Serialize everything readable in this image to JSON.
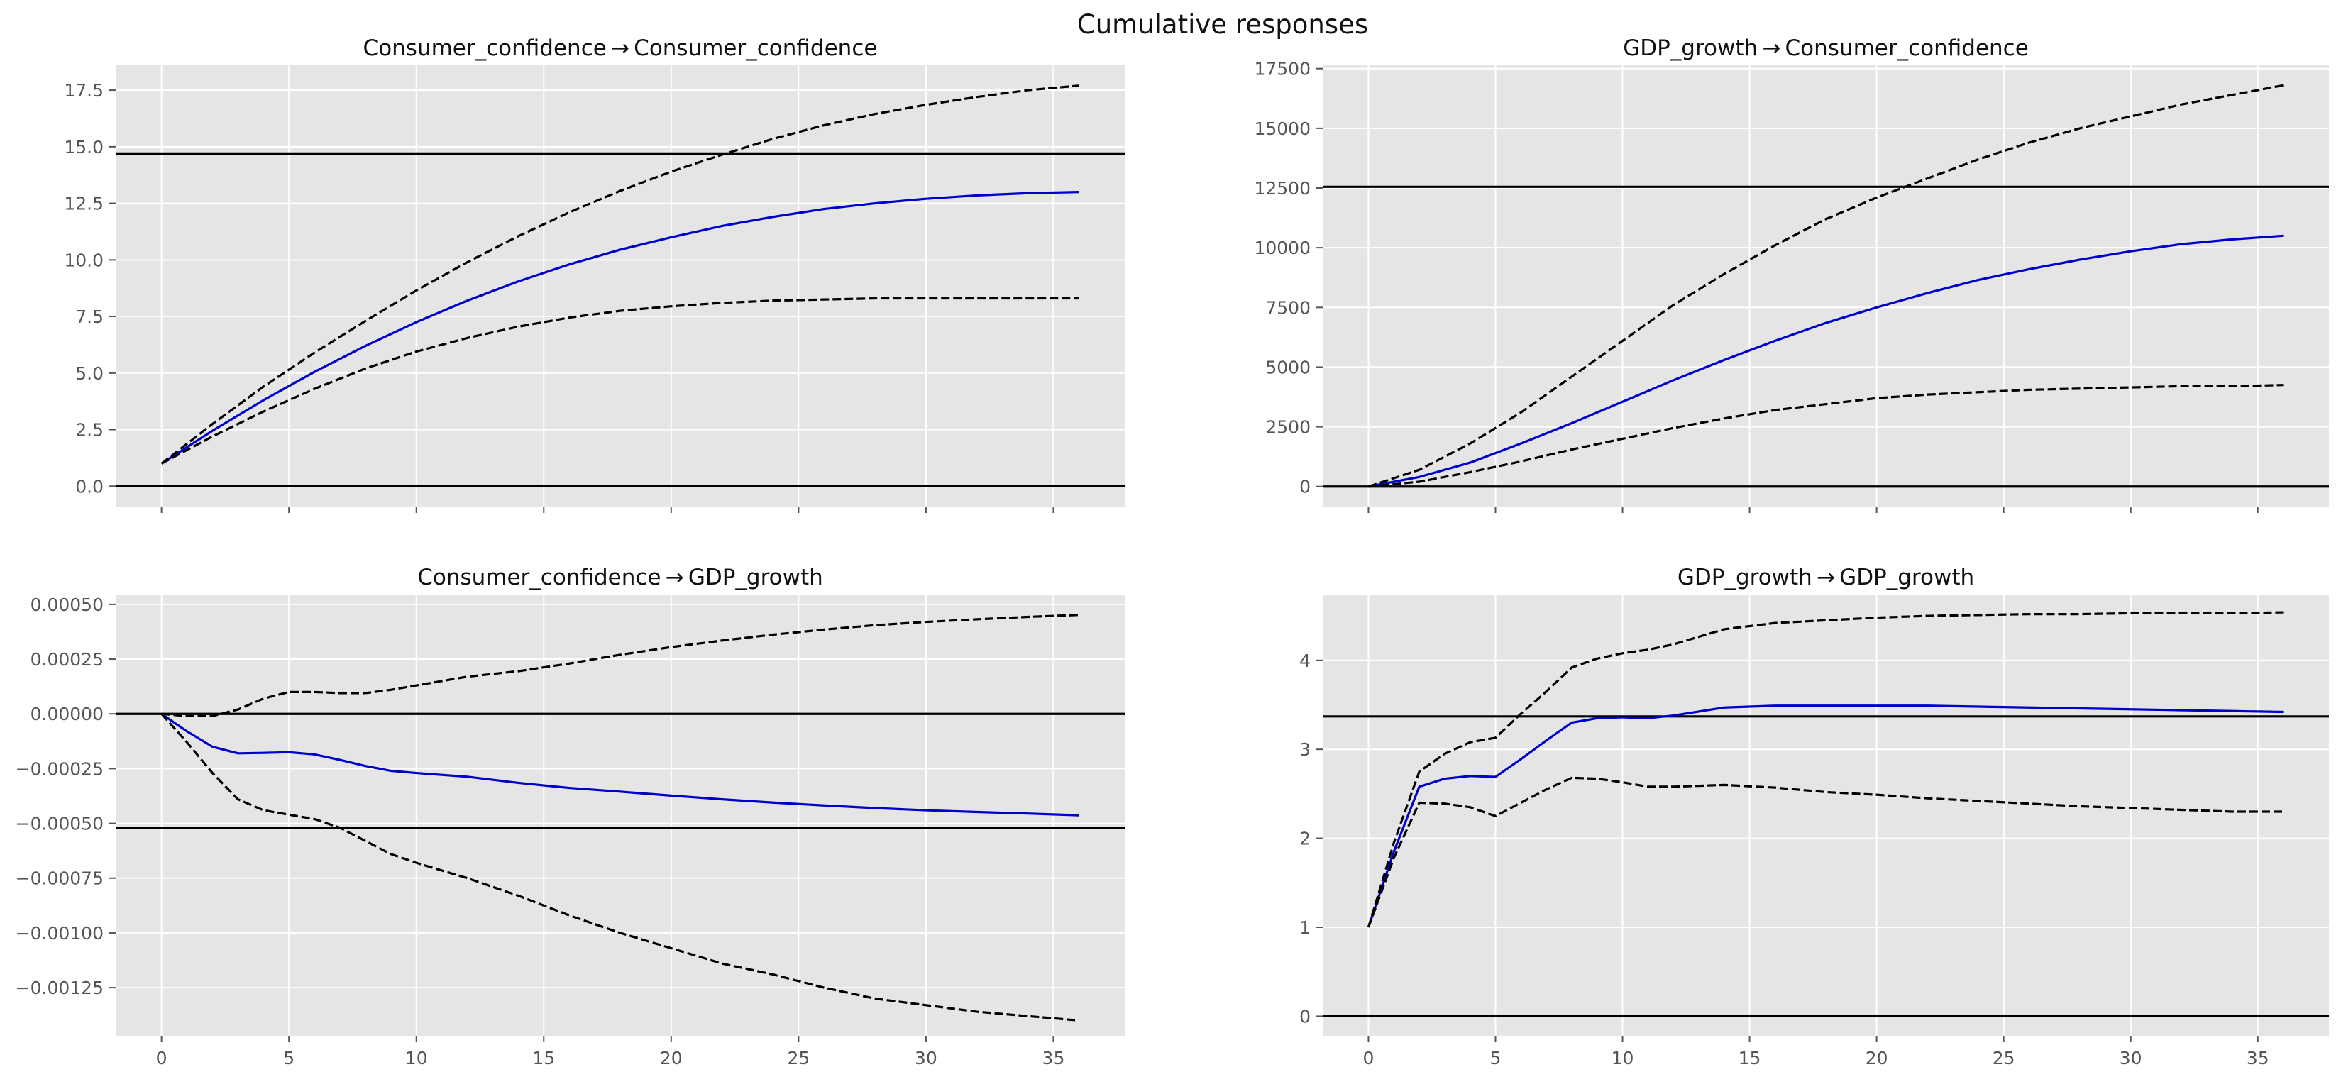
{
  "figure": {
    "suptitle": "Cumulative responses",
    "colors": {
      "panel_bg": "#e5e5e5",
      "grid": "#ffffff",
      "response": "#0000cc",
      "band": "#000000",
      "reference": "#000000",
      "tick_text": "#555555"
    }
  },
  "chart_data": [
    {
      "type": "line",
      "title": "Consumer_confidence → Consumer_confidence",
      "xlabel": "",
      "ylabel": "",
      "xlim": [
        -1.8,
        37.8
      ],
      "ylim": [
        -0.9,
        18.6
      ],
      "xticks": [
        0,
        5,
        10,
        15,
        20,
        25,
        30,
        35
      ],
      "show_xtick_labels": false,
      "yticks": [
        0.0,
        2.5,
        5.0,
        7.5,
        10.0,
        12.5,
        15.0,
        17.5
      ],
      "ytick_labels": [
        "0.0",
        "2.5",
        "5.0",
        "7.5",
        "10.0",
        "12.5",
        "15.0",
        "17.5"
      ],
      "hlines": [
        0,
        14.7
      ],
      "grid": true,
      "x": [
        0,
        2,
        4,
        6,
        8,
        10,
        12,
        14,
        16,
        18,
        20,
        22,
        24,
        26,
        28,
        30,
        32,
        34,
        36
      ],
      "series": [
        {
          "role": "response",
          "style": "solid",
          "values": [
            1.0,
            2.45,
            3.8,
            5.05,
            6.2,
            7.25,
            8.2,
            9.05,
            9.8,
            10.45,
            11.0,
            11.5,
            11.9,
            12.25,
            12.5,
            12.7,
            12.85,
            12.95,
            13.0
          ]
        },
        {
          "role": "upper",
          "style": "dashed",
          "values": [
            1.0,
            2.75,
            4.4,
            5.9,
            7.3,
            8.65,
            9.9,
            11.05,
            12.1,
            13.05,
            13.9,
            14.65,
            15.35,
            15.95,
            16.45,
            16.85,
            17.2,
            17.5,
            17.7
          ]
        },
        {
          "role": "lower",
          "style": "dashed",
          "values": [
            1.0,
            2.2,
            3.3,
            4.3,
            5.2,
            5.95,
            6.55,
            7.05,
            7.45,
            7.75,
            7.95,
            8.1,
            8.2,
            8.25,
            8.3,
            8.3,
            8.3,
            8.3,
            8.3
          ]
        }
      ]
    },
    {
      "type": "line",
      "title": "GDP_growth → Consumer_confidence",
      "xlabel": "",
      "ylabel": "",
      "xlim": [
        -1.8,
        37.8
      ],
      "ylim": [
        -840,
        17640
      ],
      "xticks": [
        0,
        5,
        10,
        15,
        20,
        25,
        30,
        35
      ],
      "show_xtick_labels": false,
      "yticks": [
        0,
        2500,
        5000,
        7500,
        10000,
        12500,
        15000,
        17500
      ],
      "ytick_labels": [
        "0",
        "2500",
        "5000",
        "7500",
        "10000",
        "12500",
        "15000",
        "17500"
      ],
      "hlines": [
        0,
        12550
      ],
      "grid": true,
      "x": [
        0,
        2,
        4,
        6,
        8,
        10,
        12,
        14,
        16,
        18,
        20,
        22,
        24,
        26,
        28,
        30,
        32,
        34,
        36
      ],
      "series": [
        {
          "role": "response",
          "style": "solid",
          "values": [
            0,
            400,
            1000,
            1800,
            2650,
            3550,
            4450,
            5300,
            6100,
            6850,
            7500,
            8100,
            8650,
            9100,
            9500,
            9850,
            10150,
            10350,
            10500
          ]
        },
        {
          "role": "upper",
          "style": "dashed",
          "values": [
            0,
            700,
            1800,
            3100,
            4600,
            6100,
            7600,
            8900,
            10100,
            11200,
            12100,
            12900,
            13700,
            14400,
            15000,
            15500,
            16000,
            16400,
            16800
          ]
        },
        {
          "role": "lower",
          "style": "dashed",
          "values": [
            0,
            200,
            600,
            1050,
            1550,
            2000,
            2450,
            2850,
            3200,
            3450,
            3700,
            3850,
            3950,
            4050,
            4100,
            4150,
            4200,
            4200,
            4250
          ]
        }
      ]
    },
    {
      "type": "line",
      "title": "Consumer_confidence → GDP_growth",
      "xlabel": "",
      "ylabel": "",
      "xlim": [
        -1.8,
        37.8
      ],
      "ylim": [
        -0.00147,
        0.000545
      ],
      "xticks": [
        0,
        5,
        10,
        15,
        20,
        25,
        30,
        35
      ],
      "xtick_labels": [
        "0",
        "5",
        "10",
        "15",
        "20",
        "25",
        "30",
        "35"
      ],
      "show_xtick_labels": true,
      "yticks": [
        0.0005,
        0.00025,
        0.0,
        -0.00025,
        -0.0005,
        -0.00075,
        -0.001,
        -0.00125
      ],
      "ytick_labels": [
        "0.00050",
        "0.00025",
        "0.00000",
        "−0.00025",
        "−0.00050",
        "−0.00075",
        "−0.00100",
        "−0.00125"
      ],
      "hlines": [
        0,
        -0.00052
      ],
      "grid": true,
      "x": [
        0,
        1,
        2,
        3,
        4,
        5,
        6,
        7,
        8,
        9,
        10,
        12,
        14,
        16,
        18,
        20,
        22,
        24,
        26,
        28,
        30,
        32,
        34,
        36
      ],
      "series": [
        {
          "role": "response",
          "style": "solid",
          "values": [
            0,
            -8e-05,
            -0.00015,
            -0.00018,
            -0.000178,
            -0.000175,
            -0.000185,
            -0.00021,
            -0.000238,
            -0.00026,
            -0.00027,
            -0.000287,
            -0.000315,
            -0.000338,
            -0.000355,
            -0.000373,
            -0.00039,
            -0.000405,
            -0.000418,
            -0.00043,
            -0.00044,
            -0.000448,
            -0.000455,
            -0.000463
          ]
        },
        {
          "role": "upper",
          "style": "dashed",
          "values": [
            0,
            -1e-05,
            -1e-05,
            2e-05,
            7e-05,
            0.0001,
            0.0001,
            9.5e-05,
            9.5e-05,
            0.00011,
            0.00013,
            0.00017,
            0.000195,
            0.00023,
            0.00027,
            0.000305,
            0.000335,
            0.000362,
            0.000385,
            0.000405,
            0.00042,
            0.000432,
            0.000443,
            0.000452
          ]
        },
        {
          "role": "lower",
          "style": "dashed",
          "values": [
            0,
            -0.00013,
            -0.00027,
            -0.00039,
            -0.00044,
            -0.00046,
            -0.00048,
            -0.00052,
            -0.00058,
            -0.00064,
            -0.00068,
            -0.00075,
            -0.00083,
            -0.00092,
            -0.001,
            -0.00107,
            -0.00114,
            -0.00119,
            -0.00125,
            -0.0013,
            -0.00133,
            -0.00136,
            -0.00138,
            -0.0014
          ]
        }
      ]
    },
    {
      "type": "line",
      "title": "GDP_growth → GDP_growth",
      "xlabel": "",
      "ylabel": "",
      "xlim": [
        -1.8,
        37.8
      ],
      "ylim": [
        -0.22,
        4.74
      ],
      "xticks": [
        0,
        5,
        10,
        15,
        20,
        25,
        30,
        35
      ],
      "xtick_labels": [
        "0",
        "5",
        "10",
        "15",
        "20",
        "25",
        "30",
        "35"
      ],
      "show_xtick_labels": true,
      "yticks": [
        0,
        1,
        2,
        3,
        4
      ],
      "ytick_labels": [
        "0",
        "1",
        "2",
        "3",
        "4"
      ],
      "hlines": [
        0,
        3.37
      ],
      "grid": true,
      "x": [
        0,
        1,
        2,
        3,
        4,
        5,
        6,
        7,
        8,
        9,
        10,
        11,
        12,
        14,
        16,
        18,
        20,
        22,
        24,
        26,
        28,
        30,
        32,
        34,
        36
      ],
      "series": [
        {
          "role": "response",
          "style": "solid",
          "values": [
            1.0,
            1.85,
            2.58,
            2.67,
            2.7,
            2.69,
            2.89,
            3.1,
            3.3,
            3.35,
            3.36,
            3.35,
            3.38,
            3.47,
            3.49,
            3.49,
            3.49,
            3.49,
            3.48,
            3.47,
            3.46,
            3.45,
            3.44,
            3.43,
            3.42
          ]
        },
        {
          "role": "upper",
          "style": "dashed",
          "values": [
            1.0,
            1.95,
            2.75,
            2.95,
            3.08,
            3.13,
            3.4,
            3.65,
            3.92,
            4.02,
            4.08,
            4.12,
            4.18,
            4.35,
            4.42,
            4.45,
            4.48,
            4.5,
            4.51,
            4.52,
            4.52,
            4.53,
            4.53,
            4.53,
            4.54
          ]
        },
        {
          "role": "lower",
          "style": "dashed",
          "values": [
            1.0,
            1.78,
            2.4,
            2.39,
            2.35,
            2.25,
            2.4,
            2.55,
            2.68,
            2.67,
            2.63,
            2.58,
            2.58,
            2.6,
            2.57,
            2.52,
            2.49,
            2.45,
            2.42,
            2.39,
            2.36,
            2.34,
            2.32,
            2.3,
            2.3
          ]
        }
      ]
    }
  ]
}
